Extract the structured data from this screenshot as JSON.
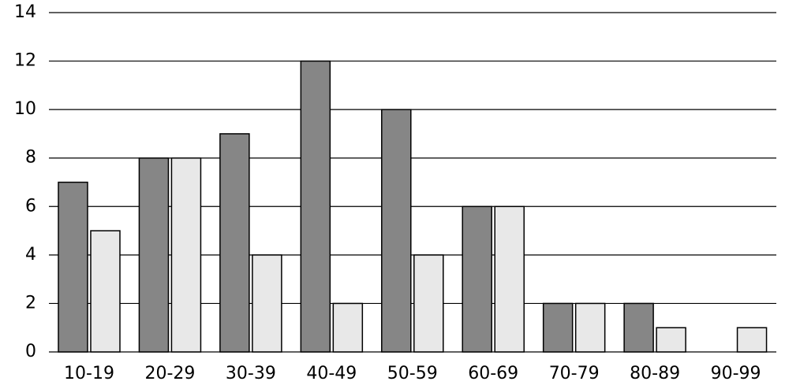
{
  "chart_data": {
    "type": "bar",
    "categories": [
      "10-19",
      "20-29",
      "30-39",
      "40-49",
      "50-59",
      "60-69",
      "70-79",
      "80-89",
      "90-99"
    ],
    "series": [
      {
        "color": "#868686",
        "values": [
          7,
          8,
          9,
          12,
          10,
          6,
          2,
          2,
          0
        ]
      },
      {
        "color": "#e8e8e8",
        "values": [
          5,
          8,
          4,
          2,
          4,
          6,
          2,
          1,
          1
        ]
      }
    ],
    "ylim": [
      0,
      14
    ],
    "yticks": [
      0,
      2,
      4,
      6,
      8,
      10,
      12,
      14
    ],
    "grid": true
  }
}
